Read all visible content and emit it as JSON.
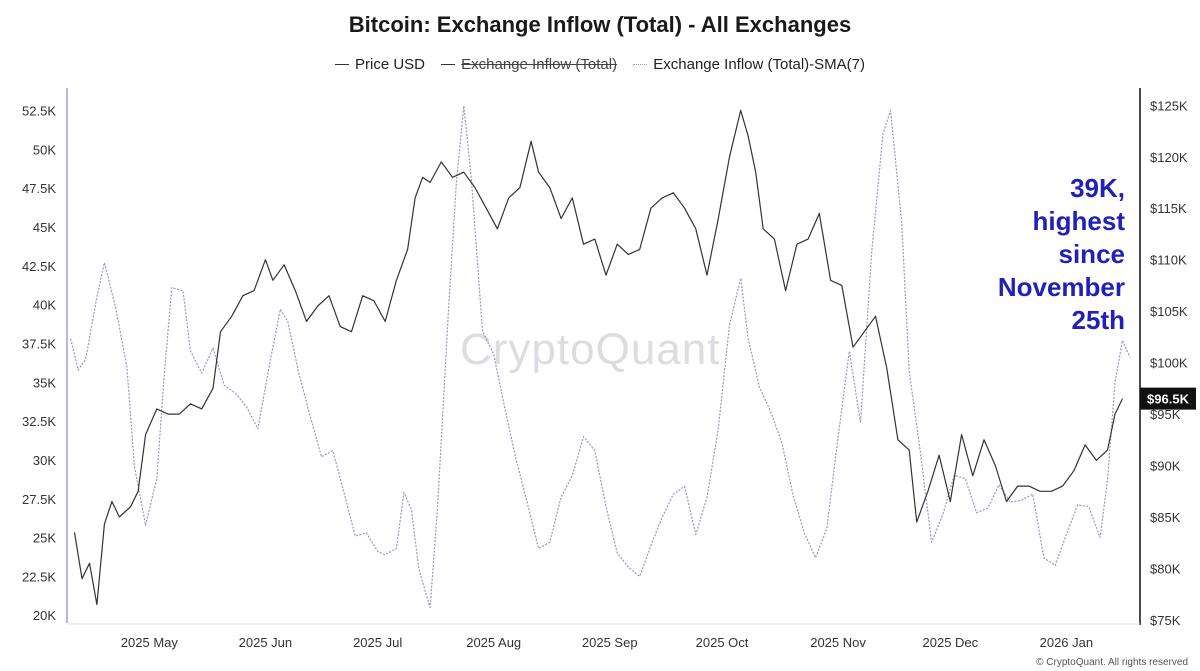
{
  "chart_data": {
    "type": "line",
    "title": "Bitcoin: Exchange Inflow (Total) - All Exchanges",
    "legend": {
      "placement": "top-center",
      "entries": [
        {
          "label": "Price USD",
          "style": "solid",
          "color": "#333333",
          "struck": false
        },
        {
          "label": "Exchange Inflow (Total)",
          "style": "solid",
          "color": "#333333",
          "struck": true
        },
        {
          "label": "Exchange Inflow (Total)-SMA(7)",
          "style": "dotted",
          "color": "#9b8fd6",
          "struck": false
        }
      ]
    },
    "x_axis": {
      "range": [
        "2025-04-09",
        "2026-01-18"
      ],
      "tick_labels": [
        "2025 May",
        "2025 Jun",
        "2025 Jul",
        "2025 Aug",
        "2025 Sep",
        "2025 Oct",
        "2025 Nov",
        "2025 Dec",
        "2026 Jan"
      ],
      "tick_dates": [
        "2025-05-01",
        "2025-06-01",
        "2025-07-01",
        "2025-08-01",
        "2025-09-01",
        "2025-10-01",
        "2025-11-01",
        "2025-12-01",
        "2026-01-01"
      ]
    },
    "y_left": {
      "range": [
        19500,
        53500
      ],
      "tick_labels": [
        "20K",
        "22.5K",
        "25K",
        "27.5K",
        "30K",
        "32.5K",
        "35K",
        "37.5K",
        "40K",
        "42.5K",
        "45K",
        "47.5K",
        "50K",
        "52.5K"
      ],
      "tick_values": [
        20000,
        22500,
        25000,
        27500,
        30000,
        32500,
        35000,
        37500,
        40000,
        42500,
        45000,
        47500,
        50000,
        52500
      ]
    },
    "y_right": {
      "range": [
        74700,
        126000
      ],
      "tick_labels": [
        "$75K",
        "$80K",
        "$85K",
        "$90K",
        "$95K",
        "$100K",
        "$105K",
        "$110K",
        "$115K",
        "$120K",
        "$125K"
      ],
      "tick_values": [
        75000,
        80000,
        85000,
        90000,
        95000,
        100000,
        105000,
        110000,
        115000,
        120000,
        125000
      ]
    },
    "grid": false,
    "series": [
      {
        "name": "Price USD",
        "axis": "right",
        "color": "#333333",
        "style": "solid",
        "points": [
          [
            "2025-04-11",
            83500
          ],
          [
            "2025-04-13",
            79000
          ],
          [
            "2025-04-15",
            80500
          ],
          [
            "2025-04-17",
            76500
          ],
          [
            "2025-04-19",
            84300
          ],
          [
            "2025-04-21",
            86500
          ],
          [
            "2025-04-23",
            85000
          ],
          [
            "2025-04-26",
            86000
          ],
          [
            "2025-04-28",
            87500
          ],
          [
            "2025-04-30",
            93000
          ],
          [
            "2025-05-03",
            95500
          ],
          [
            "2025-05-06",
            95000
          ],
          [
            "2025-05-09",
            95000
          ],
          [
            "2025-05-12",
            96000
          ],
          [
            "2025-05-15",
            95500
          ],
          [
            "2025-05-18",
            97500
          ],
          [
            "2025-05-20",
            103000
          ],
          [
            "2025-05-23",
            104500
          ],
          [
            "2025-05-26",
            106500
          ],
          [
            "2025-05-29",
            107000
          ],
          [
            "2025-06-01",
            110000
          ],
          [
            "2025-06-03",
            108000
          ],
          [
            "2025-06-06",
            109500
          ],
          [
            "2025-06-09",
            107000
          ],
          [
            "2025-06-12",
            104000
          ],
          [
            "2025-06-15",
            105500
          ],
          [
            "2025-06-18",
            106500
          ],
          [
            "2025-06-21",
            103500
          ],
          [
            "2025-06-24",
            103000
          ],
          [
            "2025-06-27",
            106500
          ],
          [
            "2025-06-30",
            106000
          ],
          [
            "2025-07-03",
            104000
          ],
          [
            "2025-07-06",
            108000
          ],
          [
            "2025-07-09",
            111000
          ],
          [
            "2025-07-11",
            116000
          ],
          [
            "2025-07-13",
            118000
          ],
          [
            "2025-07-15",
            117500
          ],
          [
            "2025-07-18",
            119500
          ],
          [
            "2025-07-21",
            118000
          ],
          [
            "2025-07-24",
            118500
          ],
          [
            "2025-07-27",
            117000
          ],
          [
            "2025-07-30",
            115000
          ],
          [
            "2025-08-02",
            113000
          ],
          [
            "2025-08-05",
            116000
          ],
          [
            "2025-08-08",
            117000
          ],
          [
            "2025-08-11",
            121500
          ],
          [
            "2025-08-13",
            118500
          ],
          [
            "2025-08-16",
            117000
          ],
          [
            "2025-08-19",
            114000
          ],
          [
            "2025-08-22",
            116000
          ],
          [
            "2025-08-25",
            111500
          ],
          [
            "2025-08-28",
            112000
          ],
          [
            "2025-08-31",
            108500
          ],
          [
            "2025-09-03",
            111500
          ],
          [
            "2025-09-06",
            110500
          ],
          [
            "2025-09-09",
            111000
          ],
          [
            "2025-09-12",
            115000
          ],
          [
            "2025-09-15",
            116000
          ],
          [
            "2025-09-18",
            116500
          ],
          [
            "2025-09-21",
            115000
          ],
          [
            "2025-09-24",
            113000
          ],
          [
            "2025-09-27",
            108500
          ],
          [
            "2025-09-30",
            114000
          ],
          [
            "2025-10-03",
            120000
          ],
          [
            "2025-10-06",
            124500
          ],
          [
            "2025-10-08",
            122000
          ],
          [
            "2025-10-10",
            118500
          ],
          [
            "2025-10-12",
            113000
          ],
          [
            "2025-10-15",
            112000
          ],
          [
            "2025-10-18",
            107000
          ],
          [
            "2025-10-21",
            111500
          ],
          [
            "2025-10-24",
            112000
          ],
          [
            "2025-10-27",
            114500
          ],
          [
            "2025-10-30",
            108000
          ],
          [
            "2025-11-02",
            107500
          ],
          [
            "2025-11-05",
            101500
          ],
          [
            "2025-11-08",
            103000
          ],
          [
            "2025-11-11",
            104500
          ],
          [
            "2025-11-14",
            99500
          ],
          [
            "2025-11-17",
            92500
          ],
          [
            "2025-11-20",
            91500
          ],
          [
            "2025-11-22",
            84500
          ],
          [
            "2025-11-25",
            87500
          ],
          [
            "2025-11-28",
            91000
          ],
          [
            "2025-12-01",
            86500
          ],
          [
            "2025-12-04",
            93000
          ],
          [
            "2025-12-07",
            89000
          ],
          [
            "2025-12-10",
            92500
          ],
          [
            "2025-12-13",
            90000
          ],
          [
            "2025-12-16",
            86500
          ],
          [
            "2025-12-19",
            88000
          ],
          [
            "2025-12-22",
            88000
          ],
          [
            "2025-12-25",
            87500
          ],
          [
            "2025-12-28",
            87500
          ],
          [
            "2025-12-31",
            88000
          ],
          [
            "2026-01-03",
            89500
          ],
          [
            "2026-01-06",
            92000
          ],
          [
            "2026-01-09",
            90500
          ],
          [
            "2026-01-12",
            91500
          ],
          [
            "2026-01-14",
            95000
          ],
          [
            "2026-01-16",
            96500
          ]
        ]
      },
      {
        "name": "Exchange Inflow (Total)-SMA(7)",
        "axis": "left",
        "color": "#9b8fd6",
        "style": "dotted",
        "points": [
          [
            "2025-04-10",
            37800
          ],
          [
            "2025-04-12",
            35800
          ],
          [
            "2025-04-14",
            36500
          ],
          [
            "2025-04-17",
            40500
          ],
          [
            "2025-04-19",
            42700
          ],
          [
            "2025-04-22",
            39800
          ],
          [
            "2025-04-25",
            36000
          ],
          [
            "2025-04-27",
            29600
          ],
          [
            "2025-04-30",
            25800
          ],
          [
            "2025-05-03",
            28800
          ],
          [
            "2025-05-05",
            35500
          ],
          [
            "2025-05-07",
            41100
          ],
          [
            "2025-05-10",
            40900
          ],
          [
            "2025-05-12",
            37000
          ],
          [
            "2025-05-15",
            35600
          ],
          [
            "2025-05-18",
            37200
          ],
          [
            "2025-05-21",
            34800
          ],
          [
            "2025-05-24",
            34300
          ],
          [
            "2025-05-27",
            33400
          ],
          [
            "2025-05-30",
            32000
          ],
          [
            "2025-06-02",
            36000
          ],
          [
            "2025-06-05",
            39700
          ],
          [
            "2025-06-07",
            38900
          ],
          [
            "2025-06-10",
            35500
          ],
          [
            "2025-06-13",
            32800
          ],
          [
            "2025-06-16",
            30200
          ],
          [
            "2025-06-19",
            30600
          ],
          [
            "2025-06-22",
            27900
          ],
          [
            "2025-06-25",
            25100
          ],
          [
            "2025-06-28",
            25300
          ],
          [
            "2025-07-01",
            24100
          ],
          [
            "2025-07-03",
            23900
          ],
          [
            "2025-07-06",
            24300
          ],
          [
            "2025-07-08",
            27900
          ],
          [
            "2025-07-10",
            26800
          ],
          [
            "2025-07-12",
            23000
          ],
          [
            "2025-07-14",
            21300
          ],
          [
            "2025-07-15",
            20500
          ],
          [
            "2025-07-17",
            27000
          ],
          [
            "2025-07-20",
            40000
          ],
          [
            "2025-07-22",
            47800
          ],
          [
            "2025-07-24",
            52800
          ],
          [
            "2025-07-26",
            48200
          ],
          [
            "2025-07-29",
            38300
          ],
          [
            "2025-08-01",
            36800
          ],
          [
            "2025-08-04",
            33300
          ],
          [
            "2025-08-07",
            30000
          ],
          [
            "2025-08-10",
            27200
          ],
          [
            "2025-08-13",
            24300
          ],
          [
            "2025-08-16",
            24700
          ],
          [
            "2025-08-19",
            27600
          ],
          [
            "2025-08-22",
            29000
          ],
          [
            "2025-08-25",
            31500
          ],
          [
            "2025-08-28",
            30600
          ],
          [
            "2025-08-31",
            27000
          ],
          [
            "2025-09-03",
            24000
          ],
          [
            "2025-09-06",
            23100
          ],
          [
            "2025-09-09",
            22500
          ],
          [
            "2025-09-12",
            24500
          ],
          [
            "2025-09-15",
            26300
          ],
          [
            "2025-09-18",
            27800
          ],
          [
            "2025-09-21",
            28300
          ],
          [
            "2025-09-24",
            25200
          ],
          [
            "2025-09-27",
            27600
          ],
          [
            "2025-09-30",
            32000
          ],
          [
            "2025-10-03",
            38700
          ],
          [
            "2025-10-06",
            41700
          ],
          [
            "2025-10-08",
            37800
          ],
          [
            "2025-10-11",
            34700
          ],
          [
            "2025-10-14",
            33100
          ],
          [
            "2025-10-17",
            31100
          ],
          [
            "2025-10-20",
            27700
          ],
          [
            "2025-10-23",
            25300
          ],
          [
            "2025-10-26",
            23700
          ],
          [
            "2025-10-29",
            25600
          ],
          [
            "2025-11-01",
            31400
          ],
          [
            "2025-11-04",
            37000
          ],
          [
            "2025-11-07",
            32400
          ],
          [
            "2025-11-10",
            43400
          ],
          [
            "2025-11-13",
            51000
          ],
          [
            "2025-11-15",
            52500
          ],
          [
            "2025-11-18",
            45300
          ],
          [
            "2025-11-20",
            35700
          ],
          [
            "2025-11-23",
            30500
          ],
          [
            "2025-11-26",
            24700
          ],
          [
            "2025-11-29",
            26500
          ],
          [
            "2025-12-02",
            29000
          ],
          [
            "2025-12-05",
            28800
          ],
          [
            "2025-12-08",
            26600
          ],
          [
            "2025-12-11",
            26900
          ],
          [
            "2025-12-14",
            28400
          ],
          [
            "2025-12-17",
            27300
          ],
          [
            "2025-12-20",
            27400
          ],
          [
            "2025-12-23",
            27800
          ],
          [
            "2025-12-26",
            23700
          ],
          [
            "2025-12-29",
            23200
          ],
          [
            "2026-01-01",
            25200
          ],
          [
            "2026-01-04",
            27100
          ],
          [
            "2026-01-07",
            27000
          ],
          [
            "2026-01-10",
            25000
          ],
          [
            "2026-01-12",
            28700
          ],
          [
            "2026-01-14",
            35000
          ],
          [
            "2026-01-16",
            37700
          ],
          [
            "2026-01-18",
            36600
          ]
        ]
      }
    ],
    "last_price_badge": "$96.5K",
    "annotation": [
      "39K,",
      "highest",
      "since",
      "November",
      "25th"
    ],
    "annotation_color": "#2121b8",
    "watermark": "CryptoQuant",
    "copyright": "© CryptoQuant. All rights reserved"
  }
}
